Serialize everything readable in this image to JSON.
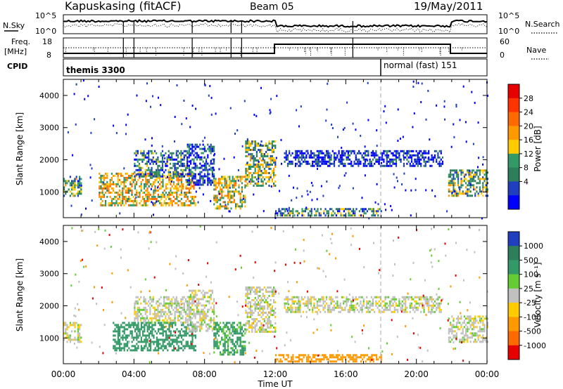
{
  "header": {
    "title": "Kapuskasing (fitACF)",
    "beam": "Beam 05",
    "date": "19/May/2011"
  },
  "top_panels": {
    "nsky_label": "N.Sky",
    "nsky_ticks": [
      "10^5",
      "10^0"
    ],
    "nsearch_label": "N.Search",
    "nsearch_ticks": [
      "10^5",
      "10^0"
    ],
    "freq_label": "Freq.",
    "freq_unit": "[MHz]",
    "freq_ticks": [
      "18",
      "8"
    ],
    "nave_label": "Nave",
    "nave_ticks": [
      "60",
      "0"
    ],
    "cpid_label": "CPID",
    "cpid_modes": [
      {
        "name": "themis 3300",
        "start_hour": 0,
        "end_hour": 18
      },
      {
        "name": "normal (fast) 151",
        "start_hour": 18,
        "end_hour": 24
      }
    ]
  },
  "chart_data": [
    {
      "type": "heatmap",
      "name": "Power",
      "xlabel": "Time UT",
      "ylabel": "Slant Range [km]",
      "xlim": [
        0,
        24
      ],
      "ylim": [
        200,
        4500
      ],
      "x_ticks": [
        "00:00",
        "04:00",
        "08:00",
        "12:00",
        "16:00",
        "20:00",
        "00:00"
      ],
      "y_ticks": [
        1000,
        2000,
        3000,
        4000
      ],
      "colorbar": {
        "label": "Power [dB]",
        "ticks": [
          "28",
          "24",
          "20",
          "16",
          "12",
          "8",
          "4"
        ],
        "colors": [
          "#e60000",
          "#ff3300",
          "#ff6a00",
          "#ff9900",
          "#ffcc00",
          "#339966",
          "#2e7d5b",
          "#1f3fbf",
          "#0000ff"
        ]
      },
      "regions": [
        {
          "t0": 0.0,
          "t1": 1.0,
          "r0": 900,
          "r1": 1500,
          "level": 12
        },
        {
          "t0": 2.0,
          "t1": 7.5,
          "r0": 600,
          "r1": 1600,
          "level": 18
        },
        {
          "t0": 4.0,
          "t1": 7.0,
          "r0": 1500,
          "r1": 2300,
          "level": 9
        },
        {
          "t0": 7.0,
          "t1": 8.5,
          "r0": 1200,
          "r1": 2500,
          "level": 7
        },
        {
          "t0": 8.5,
          "t1": 10.3,
          "r0": 500,
          "r1": 1500,
          "level": 17
        },
        {
          "t0": 10.3,
          "t1": 12.0,
          "r0": 1200,
          "r1": 2600,
          "level": 14
        },
        {
          "t0": 12.0,
          "t1": 18.0,
          "r0": 250,
          "r1": 500,
          "level": 11
        },
        {
          "t0": 12.5,
          "t1": 21.5,
          "r0": 1800,
          "r1": 2300,
          "level": 5
        },
        {
          "t0": 21.8,
          "t1": 24.0,
          "r0": 900,
          "r1": 1700,
          "level": 14
        }
      ]
    },
    {
      "type": "heatmap",
      "name": "Velocity",
      "xlabel": "Time UT",
      "ylabel": "Slant Range [km]",
      "xlim": [
        0,
        24
      ],
      "ylim": [
        200,
        4500
      ],
      "x_ticks": [
        "00:00",
        "04:00",
        "08:00",
        "12:00",
        "16:00",
        "20:00",
        "00:00"
      ],
      "y_ticks": [
        1000,
        2000,
        3000,
        4000
      ],
      "colorbar": {
        "label": "Velocity [m s⁻¹]",
        "ticks": [
          "1000",
          "500",
          "100",
          "25",
          "-25",
          "-100",
          "-500",
          "-1000"
        ],
        "colors": [
          "#1f3fbf",
          "#2e7d5b",
          "#339966",
          "#66cc33",
          "#c0c0c0",
          "#ffcc00",
          "#ff9900",
          "#ff6a00",
          "#e60000"
        ]
      },
      "regions": [
        {
          "t0": 0.0,
          "t1": 1.0,
          "r0": 900,
          "r1": 1500,
          "level": 0
        },
        {
          "t0": 2.8,
          "t1": 7.5,
          "r0": 600,
          "r1": 1500,
          "level": 150
        },
        {
          "t0": 4.0,
          "t1": 7.0,
          "r0": 1500,
          "r1": 2300,
          "level": 0
        },
        {
          "t0": 7.0,
          "t1": 8.5,
          "r0": 1200,
          "r1": 2500,
          "level": 0
        },
        {
          "t0": 8.5,
          "t1": 10.3,
          "r0": 500,
          "r1": 1500,
          "level": 120
        },
        {
          "t0": 10.3,
          "t1": 12.0,
          "r0": 1200,
          "r1": 2600,
          "level": 0
        },
        {
          "t0": 12.0,
          "t1": 18.0,
          "r0": 250,
          "r1": 500,
          "level": -150
        },
        {
          "t0": 12.5,
          "t1": 21.5,
          "r0": 1800,
          "r1": 2300,
          "level": 0
        },
        {
          "t0": 21.8,
          "t1": 24.0,
          "r0": 900,
          "r1": 1700,
          "level": 0
        }
      ]
    }
  ]
}
